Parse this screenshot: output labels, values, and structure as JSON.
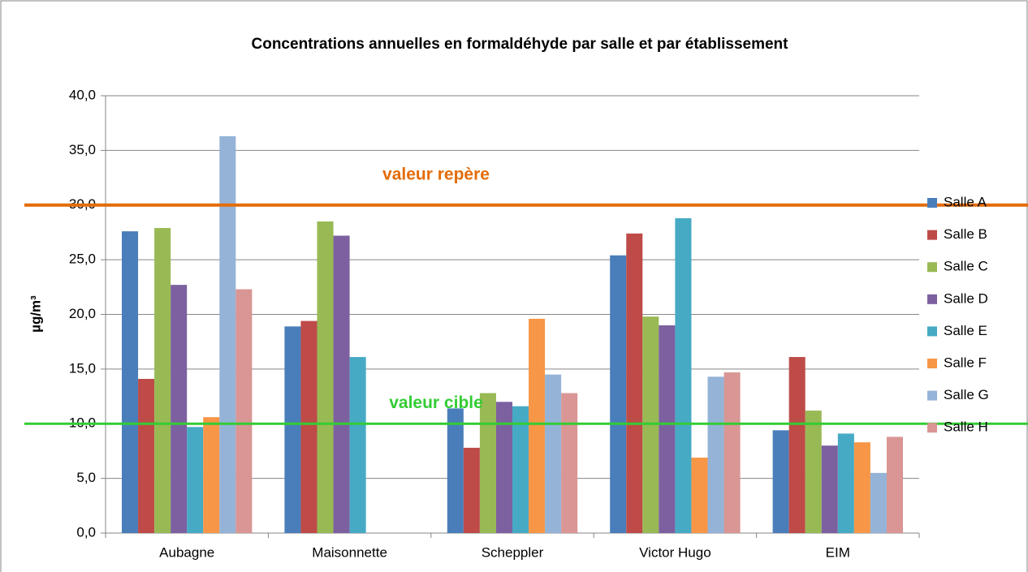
{
  "chart_data": {
    "type": "bar",
    "title": "Concentrations annuelles en formaldéhyde par salle et par établissement",
    "y_label": "µg/m³",
    "categories": [
      "Aubagne",
      "Maisonnette",
      "Scheppler",
      "Victor Hugo",
      "EIM"
    ],
    "series": [
      {
        "name": "Salle A",
        "color": "#4a7ebb",
        "values": [
          27.6,
          18.9,
          11.4,
          25.4,
          9.4
        ]
      },
      {
        "name": "Salle B",
        "color": "#be4b48",
        "values": [
          14.1,
          19.4,
          7.8,
          27.4,
          16.1
        ]
      },
      {
        "name": "Salle C",
        "color": "#98b954",
        "values": [
          27.9,
          28.5,
          12.8,
          19.8,
          11.2
        ]
      },
      {
        "name": "Salle D",
        "color": "#7d60a0",
        "values": [
          22.7,
          27.2,
          12.0,
          19.0,
          8.0
        ]
      },
      {
        "name": "Salle E",
        "color": "#46aac5",
        "values": [
          9.7,
          16.1,
          11.6,
          28.8,
          9.1
        ]
      },
      {
        "name": "Salle F",
        "color": "#f79646",
        "values": [
          10.6,
          null,
          19.6,
          6.9,
          8.3
        ]
      },
      {
        "name": "Salle G",
        "color": "#95b3d7",
        "values": [
          36.3,
          null,
          14.5,
          14.3,
          5.5
        ]
      },
      {
        "name": "Salle H",
        "color": "#d99694",
        "values": [
          22.3,
          null,
          12.8,
          14.7,
          8.8
        ]
      }
    ],
    "reference_lines": [
      {
        "label": "valeur repère",
        "value": 30,
        "color": "#e36c0a"
      },
      {
        "label": "valeur cible",
        "value": 10,
        "color": "#33cc33"
      }
    ],
    "ylim": [
      0,
      40
    ],
    "yticks": [
      {
        "value": 0,
        "label": "0,0"
      },
      {
        "value": 5,
        "label": "5,0"
      },
      {
        "value": 10,
        "label": "10,0"
      },
      {
        "value": 15,
        "label": "15,0"
      },
      {
        "value": 20,
        "label": "20,0"
      },
      {
        "value": 25,
        "label": "25,0"
      },
      {
        "value": 30,
        "label": "30,0"
      },
      {
        "value": 35,
        "label": "35,0"
      },
      {
        "value": 40,
        "label": "40,0"
      }
    ],
    "grid": true,
    "legend": "right"
  }
}
